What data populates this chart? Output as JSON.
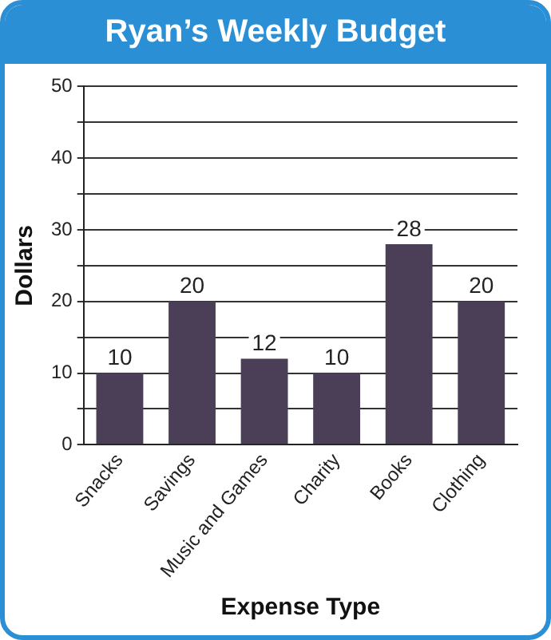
{
  "chart_data": {
    "type": "bar",
    "title": "Ryan’s Weekly Budget",
    "xlabel": "Expense Type",
    "ylabel": "Dollars",
    "categories": [
      "Snacks",
      "Savings",
      "Music and Games",
      "Charity",
      "Books",
      "Clothing"
    ],
    "values": [
      10,
      20,
      12,
      10,
      28,
      20
    ],
    "color": "#4b3f57",
    "ylim": [
      0,
      50
    ],
    "yticks": [
      0,
      {
        "value": 5,
        "label": null
      },
      10,
      {
        "value": 15,
        "label": null
      },
      20,
      {
        "value": 25,
        "label": null
      },
      30,
      {
        "value": 35,
        "label": null
      },
      40,
      {
        "value": 45,
        "label": null
      },
      50
    ],
    "grid": "y",
    "data_labels": true,
    "legend": false
  }
}
